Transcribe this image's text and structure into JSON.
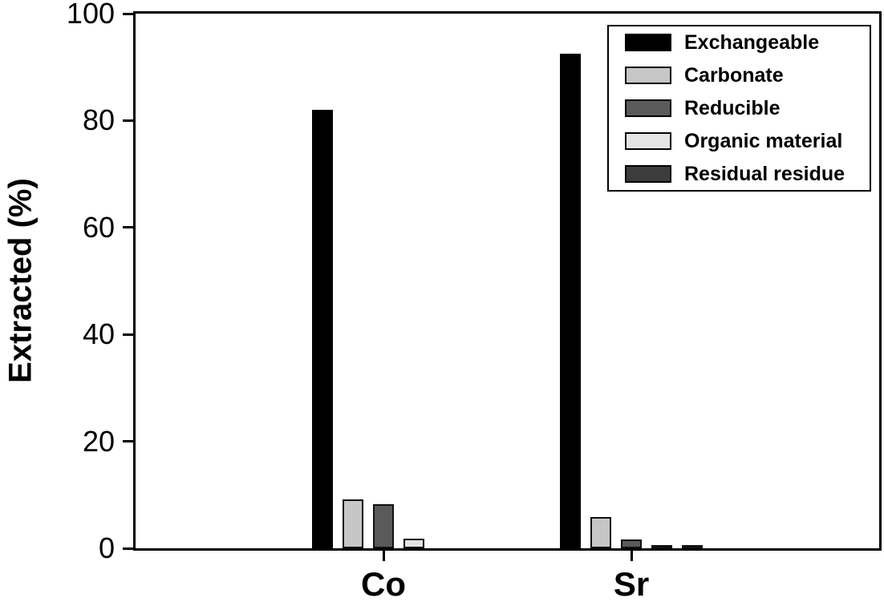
{
  "chart_data": {
    "type": "bar",
    "title": "",
    "xlabel": "",
    "ylabel": "Extracted (%)",
    "categories": [
      "Co",
      "Sr"
    ],
    "series": [
      {
        "name": "Exchangeable",
        "color": "#000000",
        "values": [
          82,
          92.5
        ]
      },
      {
        "name": "Carbonate",
        "color": "#c6c6c6",
        "values": [
          9.2,
          5.8
        ]
      },
      {
        "name": "Reducible",
        "color": "#5a5a5a",
        "values": [
          8.2,
          1.7
        ]
      },
      {
        "name": "Organic material",
        "color": "#e4e4e4",
        "values": [
          1.8,
          0.5
        ]
      },
      {
        "name": "Residual residue",
        "color": "#3c3c3c",
        "values": [
          0,
          0.4
        ]
      }
    ],
    "ylim": [
      0,
      100
    ],
    "yticks": [
      0,
      20,
      40,
      60,
      80,
      100
    ],
    "grid": false,
    "legend_position": "top-right",
    "bar_border_color": "#111111",
    "frame_color": "#000000",
    "background_color": "#ffffff"
  }
}
